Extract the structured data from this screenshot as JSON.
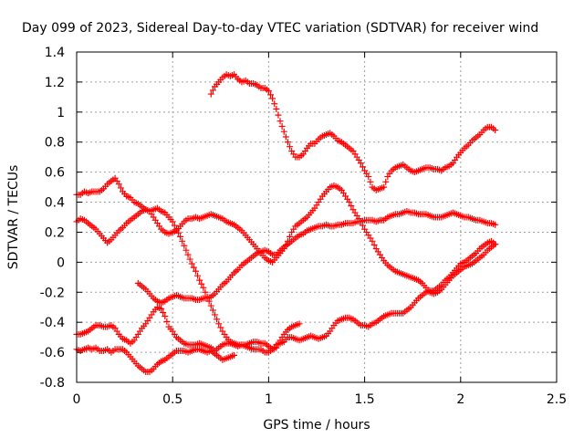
{
  "chart_data": {
    "type": "scatter",
    "title": "Day 099 of 2023, Sidereal Day-to-day VTEC variation (SDTVAR) for receiver wind",
    "xlabel": "GPS time / hours",
    "ylabel": "SDTVAR / TECUs",
    "xlim": [
      0,
      2.5
    ],
    "ylim": [
      -0.8,
      1.4
    ],
    "xticks": [
      "0",
      "0.5",
      "1",
      "1.5",
      "2",
      "2.5"
    ],
    "yticks": [
      "-0.8",
      "-0.6",
      "-0.4",
      "-0.2",
      "0",
      "0.2",
      "0.4",
      "0.6",
      "0.8",
      "1",
      "1.2",
      "1.4"
    ],
    "grid": true,
    "marker": "+",
    "color": "#ff0000",
    "series": [
      {
        "x": [
          0.7,
          0.72,
          0.74,
          0.76,
          0.78,
          0.8,
          0.82,
          0.84,
          0.86,
          0.88,
          0.9,
          0.92,
          0.94,
          0.96,
          0.98,
          1.0,
          1.02,
          1.04,
          1.06,
          1.08,
          1.1,
          1.12,
          1.14,
          1.16,
          1.18,
          1.2,
          1.22,
          1.24,
          1.26,
          1.28,
          1.3,
          1.32,
          1.34,
          1.36,
          1.38,
          1.4,
          1.42,
          1.44,
          1.46,
          1.48,
          1.5,
          1.52,
          1.54,
          1.56,
          1.58,
          1.6,
          1.62,
          1.64,
          1.66,
          1.68,
          1.7,
          1.72,
          1.74,
          1.76,
          1.78,
          1.8,
          1.82,
          1.84,
          1.86,
          1.88,
          1.9,
          1.92,
          1.94,
          1.96,
          1.98,
          2.0,
          2.02,
          2.04,
          2.06,
          2.08,
          2.1,
          2.12,
          2.14,
          2.16,
          2.18
        ],
        "y": [
          1.12,
          1.17,
          1.2,
          1.23,
          1.25,
          1.24,
          1.25,
          1.22,
          1.2,
          1.21,
          1.19,
          1.19,
          1.18,
          1.16,
          1.16,
          1.14,
          1.09,
          1.02,
          0.94,
          0.87,
          0.8,
          0.74,
          0.7,
          0.7,
          0.72,
          0.76,
          0.79,
          0.79,
          0.82,
          0.84,
          0.85,
          0.86,
          0.84,
          0.81,
          0.8,
          0.78,
          0.76,
          0.74,
          0.7,
          0.66,
          0.61,
          0.57,
          0.5,
          0.48,
          0.49,
          0.5,
          0.57,
          0.61,
          0.63,
          0.64,
          0.65,
          0.63,
          0.61,
          0.6,
          0.61,
          0.62,
          0.63,
          0.63,
          0.62,
          0.62,
          0.61,
          0.63,
          0.64,
          0.66,
          0.7,
          0.73,
          0.76,
          0.78,
          0.81,
          0.83,
          0.85,
          0.88,
          0.9,
          0.9,
          0.88
        ]
      },
      {
        "x": [
          0,
          0.02,
          0.04,
          0.06,
          0.08,
          0.1,
          0.12,
          0.14,
          0.16,
          0.18,
          0.2,
          0.22,
          0.24,
          0.26,
          0.28,
          0.3,
          0.32,
          0.34,
          0.36,
          0.38,
          0.4,
          0.42,
          0.44,
          0.46,
          0.48,
          0.5,
          0.52,
          0.54,
          0.56,
          0.58,
          0.6,
          0.62,
          0.64,
          0.66,
          0.68,
          0.7,
          0.72,
          0.74,
          0.76,
          0.78,
          0.8,
          0.82,
          0.84,
          0.86,
          0.88,
          0.9,
          0.92,
          0.94,
          0.96,
          0.98,
          1.0,
          1.02,
          1.04,
          1.06,
          1.08,
          1.1,
          1.12,
          1.14,
          1.16,
          1.18,
          1.2,
          1.22,
          1.24,
          1.26,
          1.28,
          1.3,
          1.32,
          1.34,
          1.36,
          1.38,
          1.4,
          1.42,
          1.44,
          1.46,
          1.48,
          1.5,
          1.52,
          1.54,
          1.56,
          1.58,
          1.6,
          1.62,
          1.64,
          1.66,
          1.68,
          1.7,
          1.72,
          1.74,
          1.76,
          1.78,
          1.8,
          1.82,
          1.84,
          1.86,
          1.88,
          1.9,
          1.92,
          1.94,
          1.96,
          1.98,
          2.0,
          2.02,
          2.04,
          2.06,
          2.08,
          2.1,
          2.12,
          2.14,
          2.16,
          2.18
        ],
        "y": [
          0.45,
          0.45,
          0.47,
          0.46,
          0.47,
          0.47,
          0.47,
          0.49,
          0.52,
          0.54,
          0.56,
          0.52,
          0.47,
          0.44,
          0.43,
          0.4,
          0.39,
          0.37,
          0.35,
          0.34,
          0.35,
          0.36,
          0.34,
          0.33,
          0.3,
          0.27,
          0.22,
          0.17,
          0.11,
          0.05,
          -0.01,
          -0.06,
          -0.12,
          -0.17,
          -0.23,
          -0.29,
          -0.35,
          -0.41,
          -0.46,
          -0.5,
          -0.53,
          -0.54,
          -0.55,
          -0.55,
          -0.56,
          -0.57,
          -0.58,
          -0.58,
          -0.58,
          -0.6,
          -0.6,
          -0.58,
          -0.55,
          -0.54,
          -0.53,
          -0.5,
          -0.5,
          -0.51,
          -0.52,
          -0.51,
          -0.5,
          -0.49,
          -0.5,
          -0.51,
          -0.5,
          -0.49,
          -0.46,
          -0.42,
          -0.39,
          -0.38,
          -0.37,
          -0.37,
          -0.38,
          -0.4,
          -0.42,
          -0.42,
          -0.43,
          -0.41,
          -0.4,
          -0.38,
          -0.36,
          -0.35,
          -0.34,
          -0.34,
          -0.34,
          -0.34,
          -0.32,
          -0.3,
          -0.27,
          -0.24,
          -0.22,
          -0.2,
          -0.19,
          -0.19,
          -0.17,
          -0.15,
          -0.12,
          -0.1,
          -0.07,
          -0.04,
          -0.01,
          0.0,
          0.02,
          0.04,
          0.06,
          0.09,
          0.11,
          0.13,
          0.14,
          0.12
        ]
      },
      {
        "x": [
          0,
          0.02,
          0.04,
          0.06,
          0.08,
          0.1,
          0.12,
          0.14,
          0.16,
          0.18,
          0.2,
          0.22,
          0.24,
          0.26,
          0.28,
          0.3,
          0.32,
          0.34,
          0.36,
          0.38,
          0.4,
          0.42,
          0.44,
          0.46,
          0.48,
          0.5,
          0.52,
          0.54,
          0.56,
          0.58,
          0.6,
          0.62,
          0.64,
          0.66,
          0.68,
          0.7,
          0.72,
          0.74,
          0.76,
          0.78,
          0.8,
          0.82,
          0.84,
          0.86,
          0.88,
          0.9,
          0.92,
          0.94,
          0.96,
          0.98,
          1.0,
          1.02,
          1.04,
          1.06,
          1.08,
          1.1,
          1.12,
          1.14,
          1.16,
          1.18,
          1.2,
          1.22,
          1.24,
          1.26,
          1.28,
          1.3,
          1.32,
          1.34,
          1.36,
          1.38,
          1.4,
          1.42,
          1.44,
          1.46,
          1.48,
          1.5,
          1.52,
          1.54,
          1.56,
          1.58,
          1.6,
          1.62,
          1.64,
          1.66,
          1.68,
          1.7,
          1.72,
          1.74,
          1.76,
          1.78,
          1.8,
          1.82,
          1.84,
          1.86,
          1.88,
          1.9,
          1.92,
          1.94,
          1.96,
          1.98,
          2.0,
          2.02,
          2.04,
          2.06,
          2.08,
          2.1,
          2.12,
          2.14,
          2.16,
          2.18
        ],
        "y": [
          0.27,
          0.29,
          0.28,
          0.26,
          0.24,
          0.22,
          0.19,
          0.16,
          0.13,
          0.15,
          0.18,
          0.21,
          0.23,
          0.26,
          0.28,
          0.3,
          0.32,
          0.34,
          0.35,
          0.34,
          0.3,
          0.26,
          0.22,
          0.2,
          0.19,
          0.2,
          0.21,
          0.24,
          0.27,
          0.29,
          0.29,
          0.3,
          0.29,
          0.3,
          0.31,
          0.32,
          0.31,
          0.3,
          0.29,
          0.27,
          0.26,
          0.25,
          0.23,
          0.21,
          0.18,
          0.15,
          0.12,
          0.09,
          0.06,
          0.03,
          0.01,
          0.0,
          0.03,
          0.06,
          0.09,
          0.14,
          0.2,
          0.24,
          0.26,
          0.28,
          0.3,
          0.33,
          0.36,
          0.4,
          0.44,
          0.47,
          0.5,
          0.51,
          0.5,
          0.48,
          0.44,
          0.4,
          0.35,
          0.31,
          0.27,
          0.22,
          0.18,
          0.14,
          0.09,
          0.05,
          0.01,
          -0.02,
          -0.04,
          -0.06,
          -0.07,
          -0.08,
          -0.09,
          -0.1,
          -0.11,
          -0.12,
          -0.14,
          -0.17,
          -0.2,
          -0.21,
          -0.2,
          -0.18,
          -0.15,
          -0.12,
          -0.09,
          -0.07,
          -0.05,
          -0.03,
          -0.02,
          -0.01,
          0.01,
          0.03,
          0.05,
          0.08,
          0.1,
          0.12
        ]
      },
      {
        "x": [
          0.32,
          0.34,
          0.36,
          0.38,
          0.4,
          0.42,
          0.44,
          0.46,
          0.48,
          0.5,
          0.52,
          0.54,
          0.56,
          0.58,
          0.6,
          0.62,
          0.64,
          0.66,
          0.68,
          0.7,
          0.72,
          0.74,
          0.76,
          0.78,
          0.8,
          0.82,
          0.84,
          0.86,
          0.88,
          0.9,
          0.92,
          0.94,
          0.96,
          0.98,
          1.0,
          1.02,
          1.04,
          1.06,
          1.08,
          1.1,
          1.12,
          1.14,
          1.16,
          1.18,
          1.2,
          1.22,
          1.24,
          1.26,
          1.28,
          1.3,
          1.32,
          1.34,
          1.36,
          1.38,
          1.4,
          1.42,
          1.44,
          1.46,
          1.48,
          1.5,
          1.52,
          1.54,
          1.56,
          1.58,
          1.6,
          1.62,
          1.64,
          1.66,
          1.68,
          1.7,
          1.72,
          1.74,
          1.76,
          1.78,
          1.8,
          1.82,
          1.84,
          1.86,
          1.88,
          1.9,
          1.92,
          1.94,
          1.96,
          1.98,
          2.0,
          2.02,
          2.04,
          2.06,
          2.08,
          2.1,
          2.12,
          2.14,
          2.16,
          2.18
        ],
        "y": [
          -0.14,
          -0.16,
          -0.18,
          -0.21,
          -0.24,
          -0.26,
          -0.27,
          -0.26,
          -0.24,
          -0.23,
          -0.22,
          -0.23,
          -0.24,
          -0.24,
          -0.24,
          -0.25,
          -0.25,
          -0.24,
          -0.24,
          -0.23,
          -0.21,
          -0.18,
          -0.15,
          -0.13,
          -0.1,
          -0.07,
          -0.05,
          -0.02,
          0.0,
          0.02,
          0.04,
          0.06,
          0.07,
          0.08,
          0.07,
          0.05,
          0.05,
          0.08,
          0.1,
          0.12,
          0.14,
          0.16,
          0.18,
          0.19,
          0.21,
          0.22,
          0.23,
          0.24,
          0.24,
          0.25,
          0.24,
          0.24,
          0.25,
          0.25,
          0.26,
          0.26,
          0.26,
          0.27,
          0.27,
          0.28,
          0.28,
          0.28,
          0.27,
          0.28,
          0.28,
          0.3,
          0.31,
          0.32,
          0.32,
          0.33,
          0.34,
          0.33,
          0.33,
          0.32,
          0.32,
          0.32,
          0.31,
          0.3,
          0.3,
          0.3,
          0.31,
          0.32,
          0.33,
          0.32,
          0.31,
          0.3,
          0.3,
          0.29,
          0.28,
          0.28,
          0.27,
          0.26,
          0.26,
          0.25
        ]
      },
      {
        "x": [
          0,
          0.02,
          0.04,
          0.06,
          0.08,
          0.1,
          0.12,
          0.14,
          0.16,
          0.18,
          0.2,
          0.22,
          0.24,
          0.26,
          0.28,
          0.3,
          0.32,
          0.34,
          0.36,
          0.38,
          0.4,
          0.42,
          0.44,
          0.46,
          0.48,
          0.5,
          0.52,
          0.54,
          0.56,
          0.58,
          0.6,
          0.62,
          0.64,
          0.66,
          0.68,
          0.7,
          0.72,
          0.74,
          0.76,
          0.78,
          0.8,
          0.82,
          0.84,
          0.86,
          0.88,
          0.9,
          0.92,
          0.94,
          0.96,
          0.98,
          1.0,
          1.02,
          1.04,
          1.06,
          1.08,
          1.1,
          1.12,
          1.14,
          1.16
        ],
        "y": [
          -0.48,
          -0.48,
          -0.47,
          -0.46,
          -0.44,
          -0.42,
          -0.42,
          -0.43,
          -0.43,
          -0.42,
          -0.44,
          -0.48,
          -0.51,
          -0.52,
          -0.54,
          -0.52,
          -0.48,
          -0.44,
          -0.41,
          -0.37,
          -0.33,
          -0.3,
          -0.31,
          -0.36,
          -0.43,
          -0.46,
          -0.5,
          -0.52,
          -0.54,
          -0.55,
          -0.55,
          -0.55,
          -0.54,
          -0.55,
          -0.56,
          -0.57,
          -0.59,
          -0.57,
          -0.55,
          -0.54,
          -0.54,
          -0.55,
          -0.56,
          -0.55,
          -0.55,
          -0.54,
          -0.53,
          -0.53,
          -0.54,
          -0.54,
          -0.56,
          -0.58,
          -0.57,
          -0.52,
          -0.48,
          -0.45,
          -0.43,
          -0.42,
          -0.41
        ]
      },
      {
        "x": [
          0,
          0.02,
          0.04,
          0.06,
          0.08,
          0.1,
          0.12,
          0.14,
          0.16,
          0.18,
          0.2,
          0.22,
          0.24,
          0.26,
          0.28,
          0.3,
          0.32,
          0.34,
          0.36,
          0.38,
          0.4,
          0.42,
          0.44,
          0.46,
          0.48,
          0.5,
          0.52,
          0.54,
          0.56,
          0.58,
          0.6,
          0.62,
          0.64,
          0.66,
          0.68,
          0.7,
          0.72,
          0.74,
          0.76,
          0.78,
          0.8,
          0.82
        ],
        "y": [
          -0.58,
          -0.59,
          -0.58,
          -0.57,
          -0.58,
          -0.57,
          -0.59,
          -0.59,
          -0.58,
          -0.6,
          -0.58,
          -0.58,
          -0.58,
          -0.6,
          -0.63,
          -0.66,
          -0.69,
          -0.71,
          -0.73,
          -0.73,
          -0.71,
          -0.68,
          -0.66,
          -0.65,
          -0.63,
          -0.61,
          -0.59,
          -0.59,
          -0.59,
          -0.6,
          -0.59,
          -0.58,
          -0.58,
          -0.59,
          -0.6,
          -0.59,
          -0.61,
          -0.63,
          -0.65,
          -0.64,
          -0.63,
          -0.62
        ]
      }
    ]
  }
}
